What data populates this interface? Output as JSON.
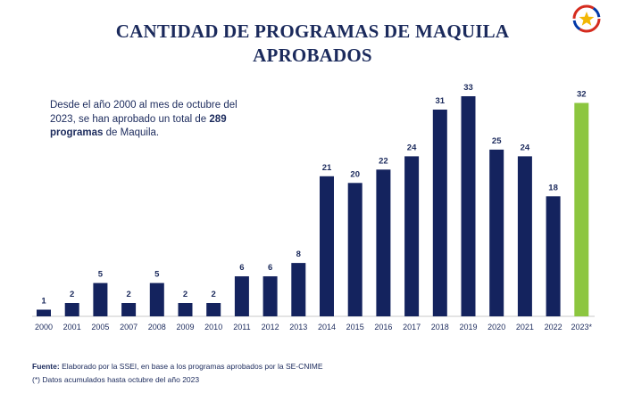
{
  "header": {
    "title_line1": "CANTIDAD DE PROGRAMAS DE MAQUILA",
    "title_line2": "APROBADOS"
  },
  "note": {
    "text_before": "Desde el año 2000 al mes de octubre del 2023, se han aprobado un total de ",
    "highlight": "289 programas",
    "text_after": " de Maquila."
  },
  "footer": {
    "source_label": "Fuente:",
    "source_text": " Elaborado por la SSEI, en base a los programas aprobados por la SE-CNIME",
    "asterisk_note": "(*) Datos acumulados hasta octubre del año 2023"
  },
  "colors": {
    "bar": "#14235e",
    "highlight_bar": "#8cc63f",
    "title": "#1b2a5c",
    "text": "#1b2a5c"
  },
  "icons": {
    "logo": "paraguay-seal-icon"
  },
  "chart_data": {
    "type": "bar",
    "title": "CANTIDAD DE PROGRAMAS DE MAQUILA APROBADOS",
    "xlabel": "",
    "ylabel": "",
    "categories": [
      "2000",
      "2001",
      "2005",
      "2007",
      "2008",
      "2009",
      "2010",
      "2011",
      "2012",
      "2013",
      "2014",
      "2015",
      "2016",
      "2017",
      "2018",
      "2019",
      "2020",
      "2021",
      "2022",
      "2023*"
    ],
    "values": [
      1,
      2,
      5,
      2,
      5,
      2,
      2,
      6,
      6,
      8,
      21,
      20,
      22,
      24,
      31,
      33,
      25,
      24,
      18,
      32
    ],
    "highlight_category": "2023*",
    "ylim": [
      0,
      33
    ],
    "grid": false,
    "legend": "none",
    "data_labels": true
  }
}
